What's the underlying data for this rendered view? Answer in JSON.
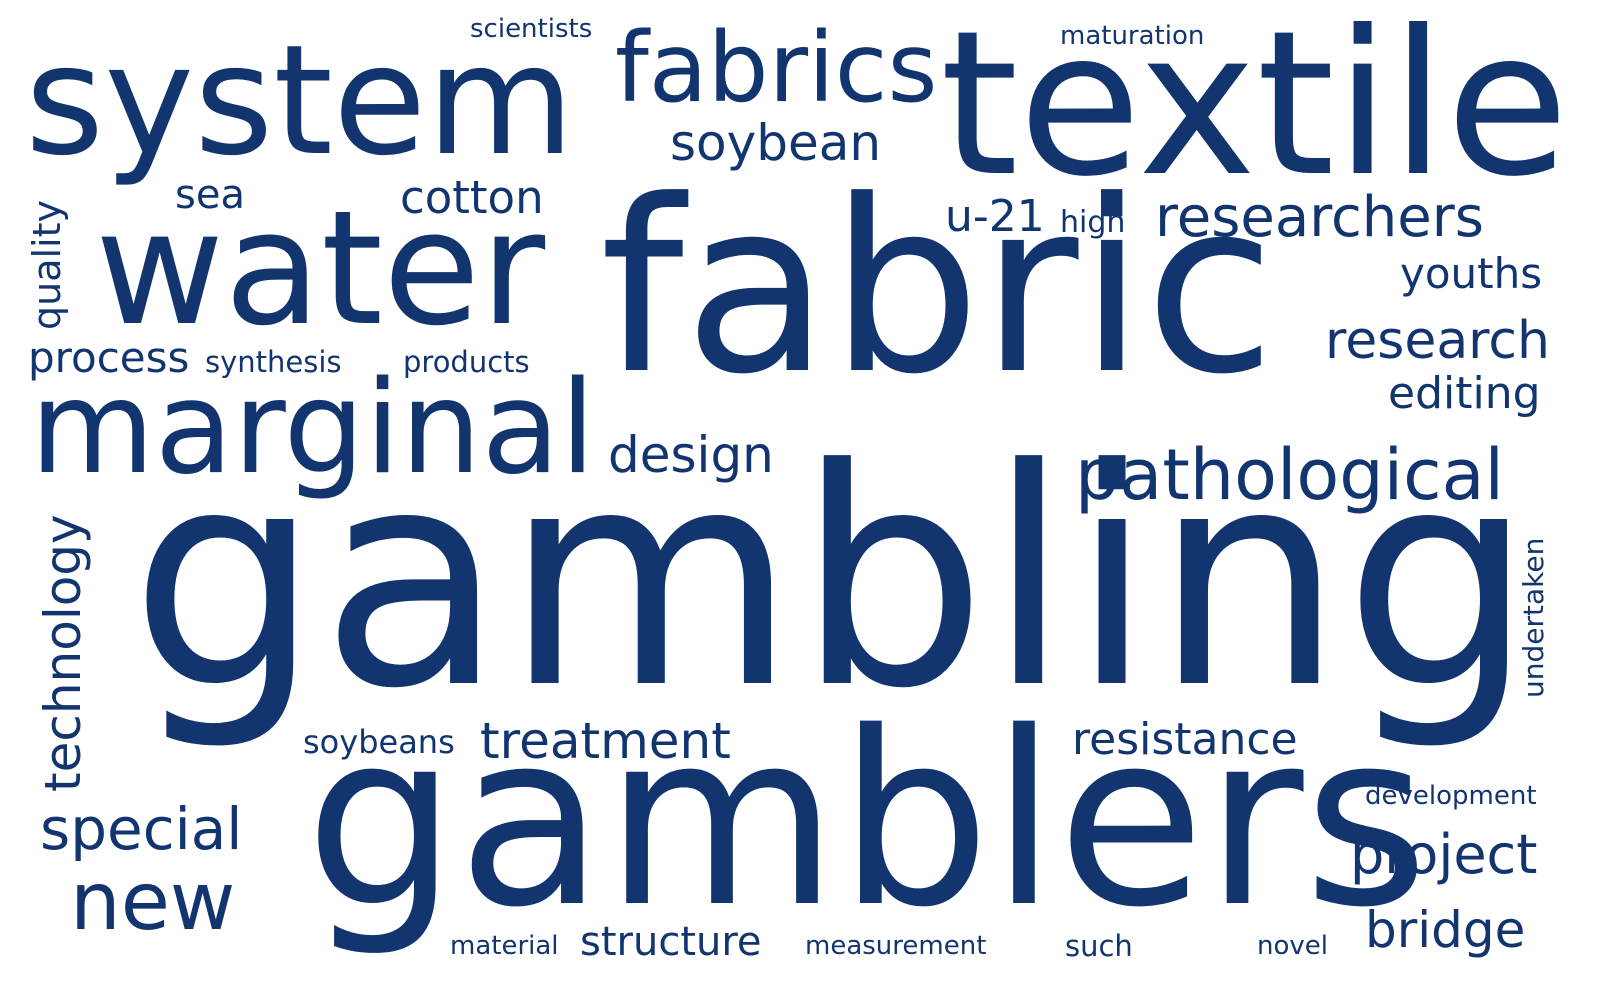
{
  "colors": {
    "word": "#123570",
    "background": "#ffffff"
  },
  "words": {
    "gambling": "gambling",
    "fabric": "fabric",
    "textile": "textile",
    "gamblers": "gamblers",
    "system": "system",
    "water": "water",
    "marginal": "marginal",
    "fabrics": "fabrics",
    "pathological": "pathological",
    "researchers": "researchers",
    "research": "research",
    "project": "project",
    "new": "new",
    "special": "special",
    "treatment": "treatment",
    "resistance": "resistance",
    "soybean": "soybean",
    "cotton": "cotton",
    "design": "design",
    "technology": "technology",
    "quality": "quality",
    "process": "process",
    "editing": "editing",
    "youths": "youths",
    "bridge": "bridge",
    "structure": "structure",
    "u21": "u-21",
    "sea": "sea",
    "soybeans": "soybeans",
    "synthesis": "synthesis",
    "products": "products",
    "scientists": "scientists",
    "maturation": "maturation",
    "high": "high",
    "development": "development",
    "undertaken": "undertaken",
    "material": "material",
    "measurement": "measurement",
    "such": "such",
    "novel": "novel"
  }
}
